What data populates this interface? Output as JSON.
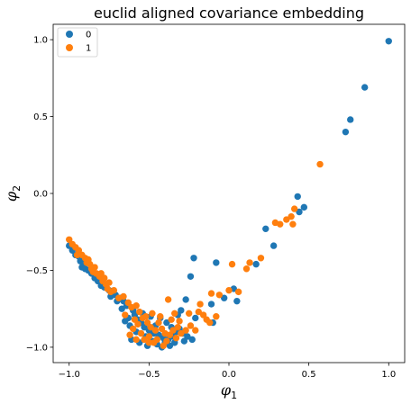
{
  "chart_data": {
    "type": "scatter",
    "title": "euclid aligned covariance embedding",
    "xlabel": "φ",
    "xlabel_sub": "1",
    "ylabel": "φ",
    "ylabel_sub": "2",
    "xlim": [
      -1.1,
      1.1
    ],
    "ylim": [
      -1.1,
      1.1
    ],
    "xticks": [
      -1.0,
      -0.5,
      0.0,
      0.5,
      1.0
    ],
    "xtick_labels": [
      "−1.0",
      "−0.5",
      "0.0",
      "0.5",
      "1.0"
    ],
    "yticks": [
      -1.0,
      -0.5,
      0.0,
      0.5,
      1.0
    ],
    "ytick_labels": [
      "−1.0",
      "−0.5",
      "0.0",
      "0.5",
      "1.0"
    ],
    "grid": false,
    "legend_position": "top-left",
    "series": [
      {
        "name": "0",
        "color": "#1f77b4",
        "points": [
          [
            1.0,
            0.99
          ],
          [
            0.85,
            0.69
          ],
          [
            0.76,
            0.48
          ],
          [
            0.73,
            0.4
          ],
          [
            0.47,
            -0.09
          ],
          [
            0.43,
            -0.02
          ],
          [
            0.44,
            -0.12
          ],
          [
            0.28,
            -0.34
          ],
          [
            0.23,
            -0.23
          ],
          [
            0.17,
            -0.46
          ],
          [
            0.05,
            -0.7
          ],
          [
            0.03,
            -0.62
          ],
          [
            -0.03,
            -0.68
          ],
          [
            -0.08,
            -0.45
          ],
          [
            -0.1,
            -0.84
          ],
          [
            -0.11,
            -0.72
          ],
          [
            -0.22,
            -0.42
          ],
          [
            -0.24,
            -0.54
          ],
          [
            -0.21,
            -0.81
          ],
          [
            -0.27,
            -0.69
          ],
          [
            -0.3,
            -0.76
          ],
          [
            -0.32,
            -0.79
          ],
          [
            -1.0,
            -0.34
          ],
          [
            -0.98,
            -0.37
          ],
          [
            -0.96,
            -0.4
          ],
          [
            -0.94,
            -0.41
          ],
          [
            -0.93,
            -0.44
          ],
          [
            -0.91,
            -0.46
          ],
          [
            -0.92,
            -0.48
          ],
          [
            -0.9,
            -0.49
          ],
          [
            -0.88,
            -0.5
          ],
          [
            -0.86,
            -0.52
          ],
          [
            -0.84,
            -0.55
          ],
          [
            -0.82,
            -0.57
          ],
          [
            -0.8,
            -0.6
          ],
          [
            -0.78,
            -0.61
          ],
          [
            -0.75,
            -0.63
          ],
          [
            -0.73,
            -0.65
          ],
          [
            -0.71,
            -0.66
          ],
          [
            -0.68,
            -0.68
          ],
          [
            -0.66,
            -0.7
          ],
          [
            -0.64,
            -0.73
          ],
          [
            -0.67,
            -0.75
          ],
          [
            -0.6,
            -0.76
          ],
          [
            -0.59,
            -0.79
          ],
          [
            -0.63,
            -0.81
          ],
          [
            -0.57,
            -0.82
          ],
          [
            -0.55,
            -0.84
          ],
          [
            -0.62,
            -0.86
          ],
          [
            -0.53,
            -0.87
          ],
          [
            -0.5,
            -0.89
          ],
          [
            -0.58,
            -0.9
          ],
          [
            -0.47,
            -0.91
          ],
          [
            -0.44,
            -0.92
          ],
          [
            -0.52,
            -0.93
          ],
          [
            -0.41,
            -0.94
          ],
          [
            -0.38,
            -0.95
          ],
          [
            -0.48,
            -0.96
          ],
          [
            -0.35,
            -0.93
          ],
          [
            -0.33,
            -0.9
          ],
          [
            -0.45,
            -0.98
          ],
          [
            -0.4,
            -0.97
          ],
          [
            -0.36,
            -0.87
          ],
          [
            -0.56,
            -0.97
          ],
          [
            -0.54,
            -0.78
          ],
          [
            -0.43,
            -0.81
          ],
          [
            -0.39,
            -0.84
          ],
          [
            -0.46,
            -0.86
          ],
          [
            -0.31,
            -0.88
          ],
          [
            -0.29,
            -0.91
          ],
          [
            -0.26,
            -0.93
          ],
          [
            -0.23,
            -0.95
          ],
          [
            -0.61,
            -0.95
          ],
          [
            -0.65,
            -0.83
          ],
          [
            -0.49,
            -0.8
          ],
          [
            -0.51,
            -0.99
          ],
          [
            -0.42,
            -1.0
          ],
          [
            -0.37,
            -0.99
          ],
          [
            -0.34,
            -0.97
          ],
          [
            -0.28,
            -0.96
          ],
          [
            -0.7,
            -0.7
          ],
          [
            -0.74,
            -0.67
          ]
        ]
      },
      {
        "name": "1",
        "color": "#ff7f0e",
        "points": [
          [
            0.57,
            0.19
          ],
          [
            0.41,
            -0.1
          ],
          [
            0.39,
            -0.15
          ],
          [
            0.36,
            -0.17
          ],
          [
            0.4,
            -0.2
          ],
          [
            0.32,
            -0.2
          ],
          [
            0.29,
            -0.19
          ],
          [
            0.2,
            -0.42
          ],
          [
            0.13,
            -0.45
          ],
          [
            0.11,
            -0.49
          ],
          [
            0.06,
            -0.64
          ],
          [
            0.0,
            -0.63
          ],
          [
            0.02,
            -0.46
          ],
          [
            -0.06,
            -0.66
          ],
          [
            -0.11,
            -0.65
          ],
          [
            -0.16,
            -0.79
          ],
          [
            -0.14,
            -0.82
          ],
          [
            -0.12,
            -0.84
          ],
          [
            -0.08,
            -0.8
          ],
          [
            -0.18,
            -0.72
          ],
          [
            -0.19,
            -0.77
          ],
          [
            -0.25,
            -0.78
          ],
          [
            -0.38,
            -0.69
          ],
          [
            -1.0,
            -0.3
          ],
          [
            -0.98,
            -0.33
          ],
          [
            -0.96,
            -0.35
          ],
          [
            -0.94,
            -0.37
          ],
          [
            -0.95,
            -0.4
          ],
          [
            -0.92,
            -0.4
          ],
          [
            -0.9,
            -0.42
          ],
          [
            -0.89,
            -0.45
          ],
          [
            -0.87,
            -0.46
          ],
          [
            -0.86,
            -0.49
          ],
          [
            -0.85,
            -0.51
          ],
          [
            -0.83,
            -0.52
          ],
          [
            -0.81,
            -0.54
          ],
          [
            -0.79,
            -0.57
          ],
          [
            -0.77,
            -0.59
          ],
          [
            -0.76,
            -0.62
          ],
          [
            -0.74,
            -0.64
          ],
          [
            -0.72,
            -0.63
          ],
          [
            -0.69,
            -0.68
          ],
          [
            -0.66,
            -0.67
          ],
          [
            -0.63,
            -0.71
          ],
          [
            -0.61,
            -0.74
          ],
          [
            -0.58,
            -0.73
          ],
          [
            -0.56,
            -0.77
          ],
          [
            -0.54,
            -0.81
          ],
          [
            -0.51,
            -0.84
          ],
          [
            -0.49,
            -0.87
          ],
          [
            -0.46,
            -0.89
          ],
          [
            -0.44,
            -0.84
          ],
          [
            -0.42,
            -0.88
          ],
          [
            -0.4,
            -0.91
          ],
          [
            -0.37,
            -0.92
          ],
          [
            -0.35,
            -0.89
          ],
          [
            -0.32,
            -0.87
          ],
          [
            -0.3,
            -0.91
          ],
          [
            -0.27,
            -0.89
          ],
          [
            -0.33,
            -0.94
          ],
          [
            -0.39,
            -0.96
          ],
          [
            -0.45,
            -0.95
          ],
          [
            -0.5,
            -0.93
          ],
          [
            -0.55,
            -0.91
          ],
          [
            -0.6,
            -0.88
          ],
          [
            -0.57,
            -0.85
          ],
          [
            -0.52,
            -0.8
          ],
          [
            -0.48,
            -0.78
          ],
          [
            -0.43,
            -0.8
          ],
          [
            -0.36,
            -0.82
          ],
          [
            -0.31,
            -0.83
          ],
          [
            -0.47,
            -0.97
          ],
          [
            -0.53,
            -0.95
          ],
          [
            -0.41,
            -0.99
          ],
          [
            -0.62,
            -0.92
          ],
          [
            -0.65,
            -0.79
          ],
          [
            -0.59,
            -0.82
          ],
          [
            -0.58,
            -0.95
          ],
          [
            -0.5,
            -0.97
          ],
          [
            -0.34,
            -0.78
          ],
          [
            -0.24,
            -0.86
          ],
          [
            -0.21,
            -0.89
          ],
          [
            -0.8,
            -0.52
          ],
          [
            -0.84,
            -0.48
          ],
          [
            -0.88,
            -0.43
          ],
          [
            -0.78,
            -0.55
          ],
          [
            -0.75,
            -0.58
          ]
        ]
      }
    ]
  }
}
